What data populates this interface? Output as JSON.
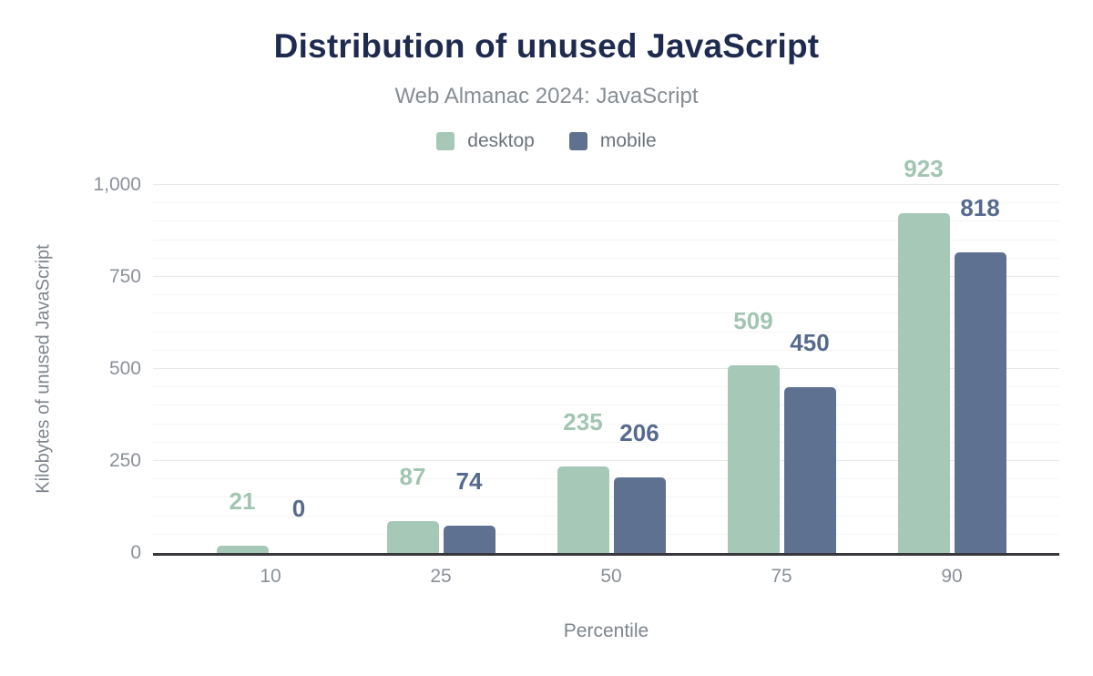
{
  "chart_data": {
    "type": "bar",
    "title": "Distribution of unused JavaScript",
    "subtitle": "Web Almanac 2024: JavaScript",
    "xlabel": "Percentile",
    "ylabel": "Kilobytes of unused JavaScript",
    "categories": [
      "10",
      "25",
      "50",
      "75",
      "90"
    ],
    "series": [
      {
        "name": "desktop",
        "color": "#a6c8b7",
        "label_color": "#a2c5b2",
        "values": [
          21,
          87,
          235,
          509,
          923
        ]
      },
      {
        "name": "mobile",
        "color": "#5f7190",
        "label_color": "#566a8e",
        "values": [
          0,
          74,
          206,
          450,
          818
        ]
      }
    ],
    "ylim": [
      0,
      1000
    ],
    "yticks": [
      0,
      250,
      500,
      750,
      1000
    ],
    "ytick_labels": [
      "0",
      "250",
      "500",
      "750",
      "1,000"
    ],
    "minor_grid_step": 50,
    "grid": true,
    "legend_position": "top"
  },
  "colors": {
    "title": "#1e2b4f",
    "subtitle": "#868d93",
    "axis_line": "#38373c",
    "tick_text": "#8b9199",
    "axis_title_text": "#7e858d",
    "major_grid": "#e9e9e9",
    "minor_grid": "#f5f5f5",
    "background": "#ffffff"
  }
}
